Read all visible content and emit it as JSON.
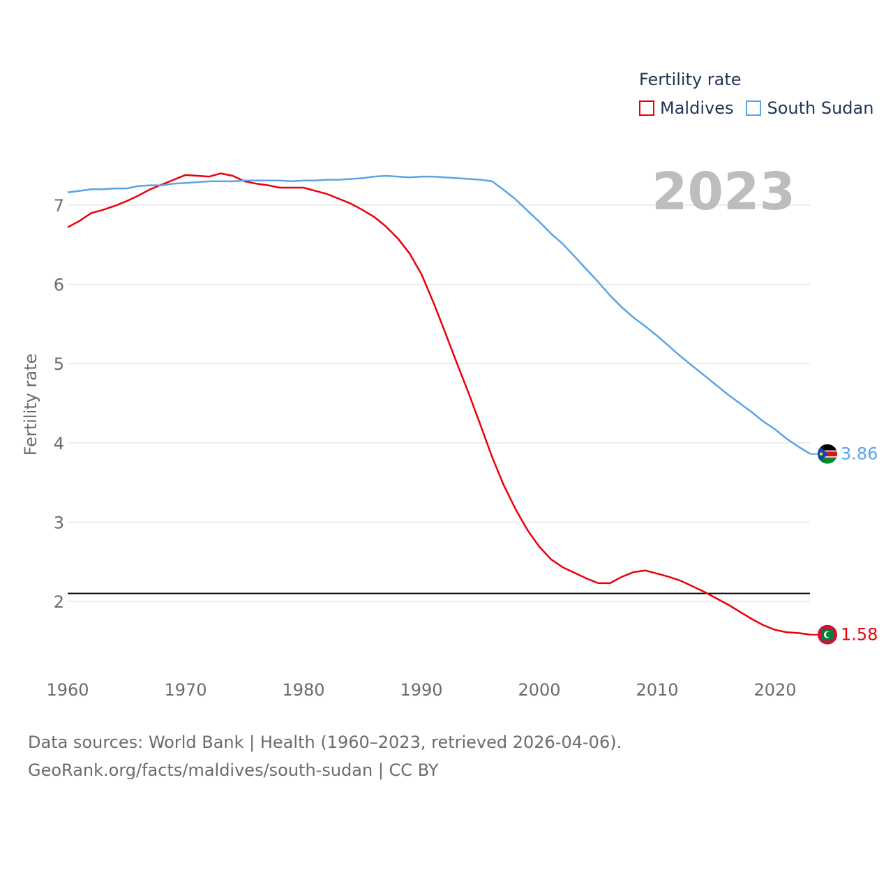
{
  "legend": {
    "title": "Fertility rate",
    "items": [
      {
        "name": "Maldives",
        "color": "#e8000b"
      },
      {
        "name": "South Sudan",
        "color": "#5ba4e5"
      }
    ]
  },
  "year_label": "2023",
  "footer": {
    "line1": "Data sources: World Bank | Health (1960–2023, retrieved 2026-04-06).",
    "line2": "GeoRank.org/facts/maldives/south-sudan | CC BY"
  },
  "chart_data": {
    "type": "line",
    "ylabel": "Fertility rate",
    "xlabel": "",
    "xlim": [
      1960,
      2023
    ],
    "ylim": [
      1.4,
      7.6
    ],
    "x_ticks": [
      1960,
      1970,
      1980,
      1990,
      2000,
      2010,
      2020
    ],
    "y_ticks": [
      2,
      3,
      4,
      5,
      6,
      7
    ],
    "reference_line": 2.1,
    "x": [
      1960,
      1961,
      1962,
      1963,
      1964,
      1965,
      1966,
      1967,
      1968,
      1969,
      1970,
      1971,
      1972,
      1973,
      1974,
      1975,
      1976,
      1977,
      1978,
      1979,
      1980,
      1981,
      1982,
      1983,
      1984,
      1985,
      1986,
      1987,
      1988,
      1989,
      1990,
      1991,
      1992,
      1993,
      1994,
      1995,
      1996,
      1997,
      1998,
      1999,
      2000,
      2001,
      2002,
      2003,
      2004,
      2005,
      2006,
      2007,
      2008,
      2009,
      2010,
      2011,
      2012,
      2013,
      2014,
      2015,
      2016,
      2017,
      2018,
      2019,
      2020,
      2021,
      2022,
      2023
    ],
    "series": [
      {
        "name": "Maldives",
        "color": "#e8000b",
        "end_label": "1.58",
        "values": [
          6.72,
          6.8,
          6.9,
          6.94,
          6.99,
          7.05,
          7.12,
          7.2,
          7.26,
          7.32,
          7.38,
          7.37,
          7.36,
          7.4,
          7.37,
          7.3,
          7.27,
          7.25,
          7.22,
          7.22,
          7.22,
          7.18,
          7.14,
          7.08,
          7.02,
          6.94,
          6.85,
          6.73,
          6.58,
          6.39,
          6.13,
          5.78,
          5.4,
          5.01,
          4.63,
          4.23,
          3.82,
          3.46,
          3.16,
          2.9,
          2.69,
          2.53,
          2.43,
          2.36,
          2.29,
          2.23,
          2.23,
          2.31,
          2.37,
          2.39,
          2.35,
          2.31,
          2.26,
          2.19,
          2.12,
          2.04,
          1.96,
          1.87,
          1.78,
          1.7,
          1.64,
          1.61,
          1.6,
          1.58
        ]
      },
      {
        "name": "South Sudan",
        "color": "#5ba4e5",
        "end_label": "3.86",
        "values": [
          7.16,
          7.18,
          7.2,
          7.2,
          7.21,
          7.21,
          7.24,
          7.25,
          7.25,
          7.27,
          7.28,
          7.29,
          7.3,
          7.3,
          7.3,
          7.31,
          7.31,
          7.31,
          7.31,
          7.3,
          7.31,
          7.31,
          7.32,
          7.32,
          7.33,
          7.34,
          7.36,
          7.37,
          7.36,
          7.35,
          7.36,
          7.36,
          7.35,
          7.34,
          7.33,
          7.32,
          7.3,
          7.19,
          7.07,
          6.93,
          6.79,
          6.64,
          6.51,
          6.35,
          6.19,
          6.03,
          5.86,
          5.71,
          5.58,
          5.47,
          5.35,
          5.22,
          5.09,
          4.97,
          4.85,
          4.73,
          4.61,
          4.5,
          4.39,
          4.27,
          4.17,
          4.05,
          3.95,
          3.86
        ]
      }
    ]
  }
}
